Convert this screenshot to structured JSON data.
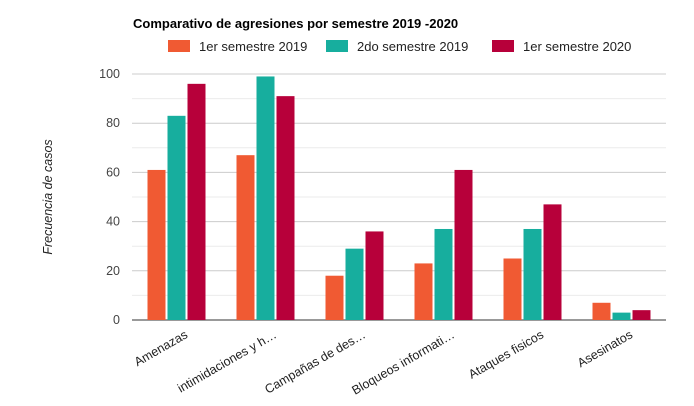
{
  "chart_data": {
    "type": "bar",
    "title": "Comparativo de agresiones por semestre 2019 -2020",
    "ylabel": "Frecuencia de casos",
    "xlabel": "",
    "ylim": [
      0,
      100
    ],
    "yticks": [
      0,
      20,
      40,
      60,
      80,
      100
    ],
    "grid": true,
    "legend_position": "top",
    "categories": [
      "Amenazas",
      "intimidaciones y h…",
      "Campañas de des…",
      "Bloqueos informati…",
      "Ataques fisicos",
      "Asesinatos"
    ],
    "series": [
      {
        "name": "1er semestre 2019",
        "color": "#f05a33",
        "values": [
          61,
          67,
          18,
          23,
          25,
          7
        ]
      },
      {
        "name": "2do semestre 2019",
        "color": "#17ae9e",
        "values": [
          83,
          99,
          29,
          37,
          37,
          3
        ]
      },
      {
        "name": "1er semestre 2020",
        "color": "#b7003a",
        "values": [
          96,
          91,
          36,
          61,
          47,
          4
        ]
      }
    ]
  }
}
